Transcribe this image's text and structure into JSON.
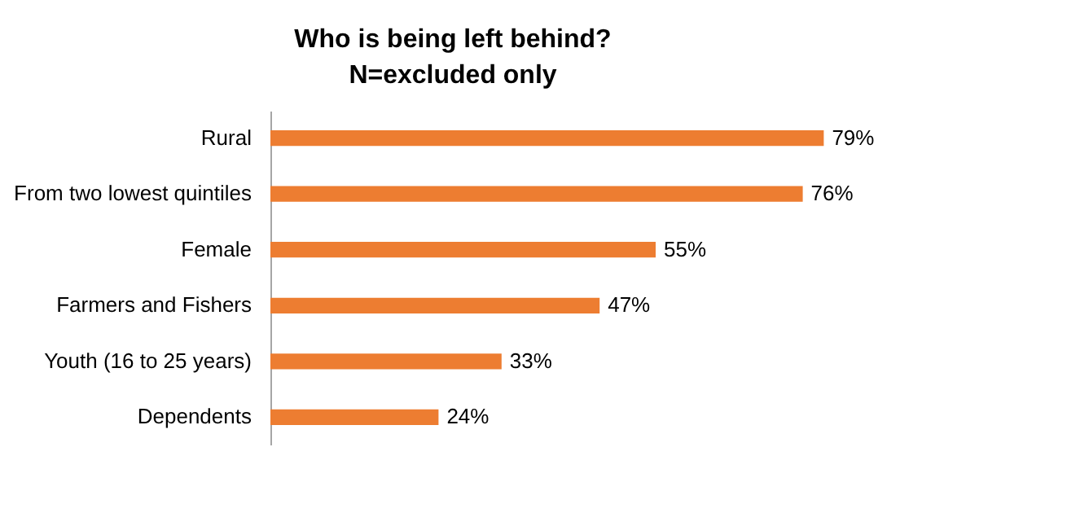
{
  "chart_data": {
    "type": "bar",
    "orientation": "horizontal",
    "title": "Who is being left behind?",
    "subtitle": "N=excluded only",
    "categories": [
      "Rural",
      "From two lowest quintiles",
      "Female",
      "Farmers and Fishers",
      "Youth (16 to 25 years)",
      "Dependents"
    ],
    "values": [
      79,
      76,
      55,
      47,
      33,
      24
    ],
    "value_labels": [
      "79%",
      "76%",
      "55%",
      "47%",
      "33%",
      "24%"
    ],
    "color": "#ed7d31"
  }
}
